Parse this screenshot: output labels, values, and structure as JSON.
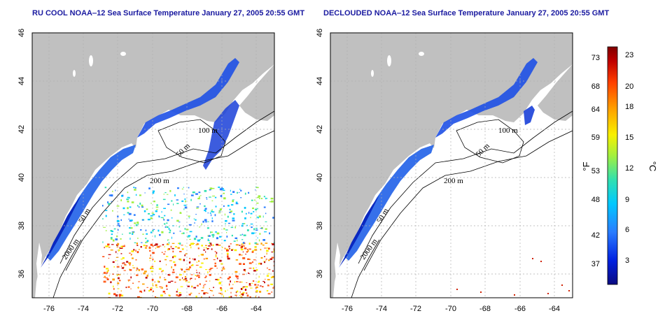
{
  "panels": [
    {
      "id": "left",
      "title": "RU COOL NOAA‒12 Sea Surface Temperature January 27, 2005 20:55 GMT",
      "x_ticks": [
        "-76",
        "-74",
        "-72",
        "-70",
        "-68",
        "-66",
        "-64"
      ],
      "y_ticks": [
        "36",
        "38",
        "40",
        "42",
        "44",
        "46"
      ],
      "contour_labels": [
        "100 m",
        "50 m",
        "200 m",
        "50 m",
        "2000 m"
      ],
      "clouded": true
    },
    {
      "id": "right",
      "title": "DECLOUDED NOAA‒12 Sea Surface Temperature January 27, 2005 20:55 GMT",
      "x_ticks": [
        "-76",
        "-74",
        "-72",
        "-70",
        "-68",
        "-66",
        "-64"
      ],
      "y_ticks": [
        "36",
        "38",
        "40",
        "42",
        "44",
        "46"
      ],
      "contour_labels": [
        "100 m",
        "50 m",
        "200 m",
        "50 m",
        "2000 m"
      ],
      "clouded": false
    }
  ],
  "map_extent": {
    "lon_min": -77,
    "lon_max": -63,
    "lat_min": 35,
    "lat_max": 46
  },
  "colorbar": {
    "fahrenheit_ticks": [
      "37",
      "42",
      "48",
      "53",
      "59",
      "64",
      "68",
      "73"
    ],
    "celsius_ticks": [
      "3",
      "6",
      "9",
      "12",
      "15",
      "18",
      "20",
      "23"
    ],
    "fahrenheit_unit": "°F",
    "celsius_unit": "°C",
    "colors": [
      "#0a0a80",
      "#0020e0",
      "#2a7cff",
      "#00c8ff",
      "#30e0b0",
      "#a0f040",
      "#f8f000",
      "#ffa000",
      "#ff4000",
      "#c00000",
      "#800000"
    ]
  },
  "colors": {
    "land": "#c0c0c0",
    "sea": "#ffffff",
    "grid": "#b0b0b0",
    "contour": "#000000",
    "title": "#1a1aa0"
  }
}
